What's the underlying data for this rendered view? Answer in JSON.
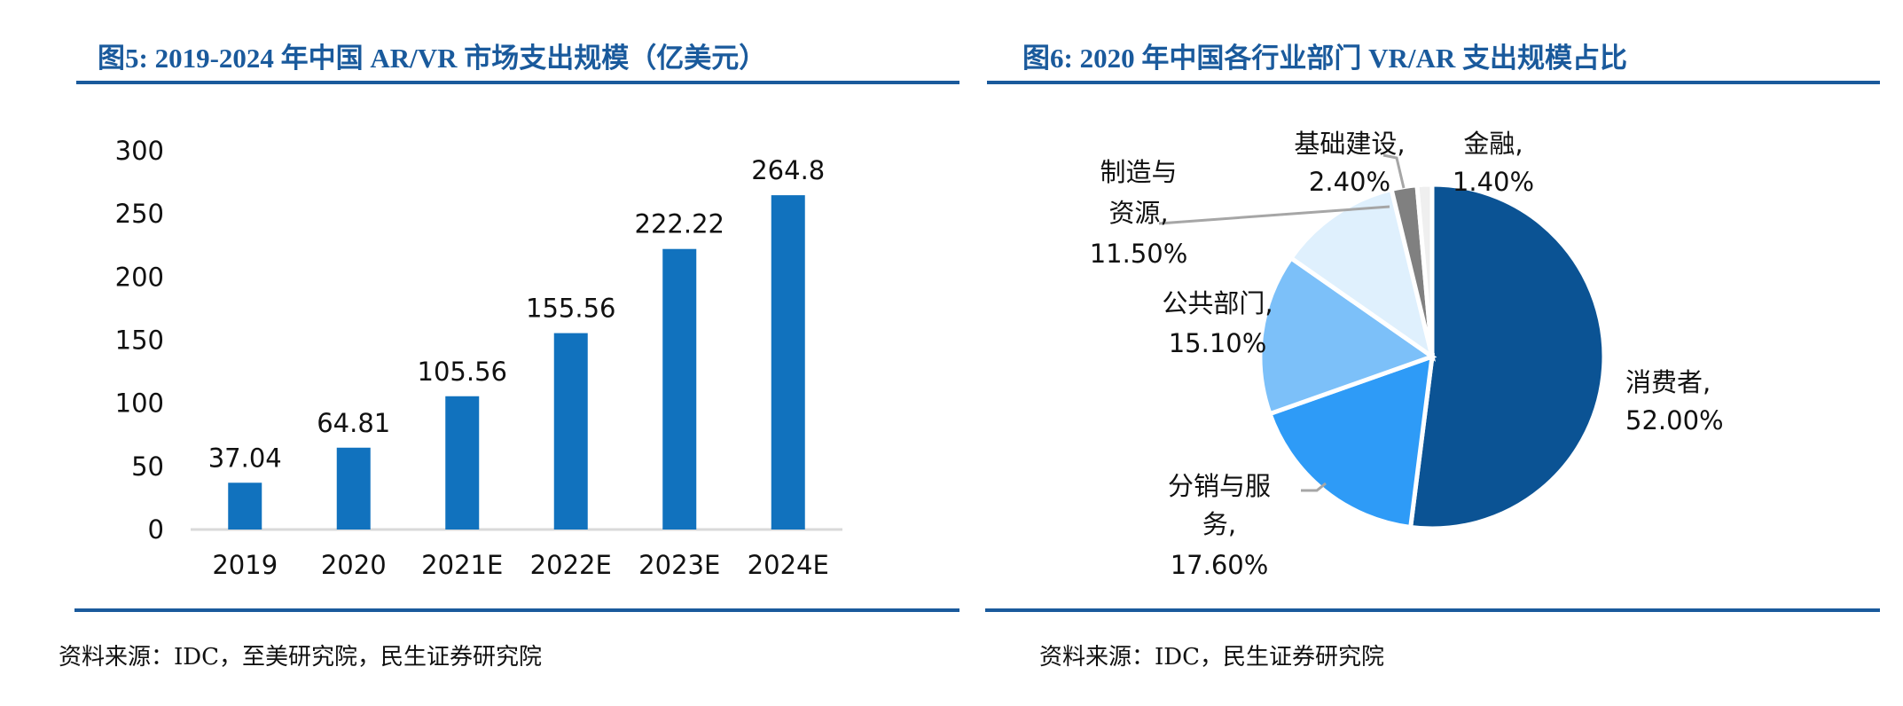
{
  "left": {
    "title": "图5: 2019-2024 年中国 AR/VR 市场支出规模（亿美元）",
    "source": "资料来源：IDC，至美研究院，民生证券研究院"
  },
  "right": {
    "title": "图6: 2020 年中国各行业部门 VR/AR 支出规模占比",
    "source": "资料来源：IDC，民生证券研究院"
  },
  "colors": {
    "title": "#1a5a9c",
    "bar": "#1172be",
    "axis": "#d9d9d9"
  },
  "chart_data": [
    {
      "type": "bar",
      "title": "图5: 2019-2024 年中国 AR/VR 市场支出规模（亿美元）",
      "categories": [
        "2019",
        "2020",
        "2021E",
        "2022E",
        "2023E",
        "2024E"
      ],
      "values": [
        37.04,
        64.81,
        105.56,
        155.56,
        222.22,
        264.8
      ],
      "data_labels": [
        "37.04",
        "64.81",
        "105.56",
        "155.56",
        "222.22",
        "264.8"
      ],
      "yticks": [
        "0",
        "50",
        "100",
        "150",
        "200",
        "250",
        "300"
      ],
      "ylim": [
        0,
        300
      ],
      "grid": false,
      "legend": "none"
    },
    {
      "type": "pie",
      "title": "图6: 2020 年中国各行业部门 VR/AR 支出规模占比",
      "start": "12 o'clock, clockwise",
      "slices": [
        {
          "name": "消费者",
          "value": 52.0,
          "label_lines": [
            "消费者,",
            "52.00%"
          ],
          "color": "#0b5394"
        },
        {
          "name": "分销与服务",
          "value": 17.6,
          "label_lines": [
            "分销与服",
            "务,",
            "17.60%"
          ],
          "color": "#2e9bf7"
        },
        {
          "name": "公共部门",
          "value": 15.1,
          "label_lines": [
            "公共部门,",
            "15.10%"
          ],
          "color": "#7cc0f9"
        },
        {
          "name": "制造与资源",
          "value": 11.5,
          "label_lines": [
            "制造与",
            "资源,",
            "11.50%"
          ],
          "color": "#dff0fd"
        },
        {
          "name": "基础建设",
          "value": 2.4,
          "label_lines": [
            "基础建设,",
            "2.40%"
          ],
          "color": "#808080"
        },
        {
          "name": "金融",
          "value": 1.4,
          "label_lines": [
            "金融,",
            "1.40%"
          ],
          "color": "#efefef"
        }
      ],
      "legend": "none"
    }
  ]
}
